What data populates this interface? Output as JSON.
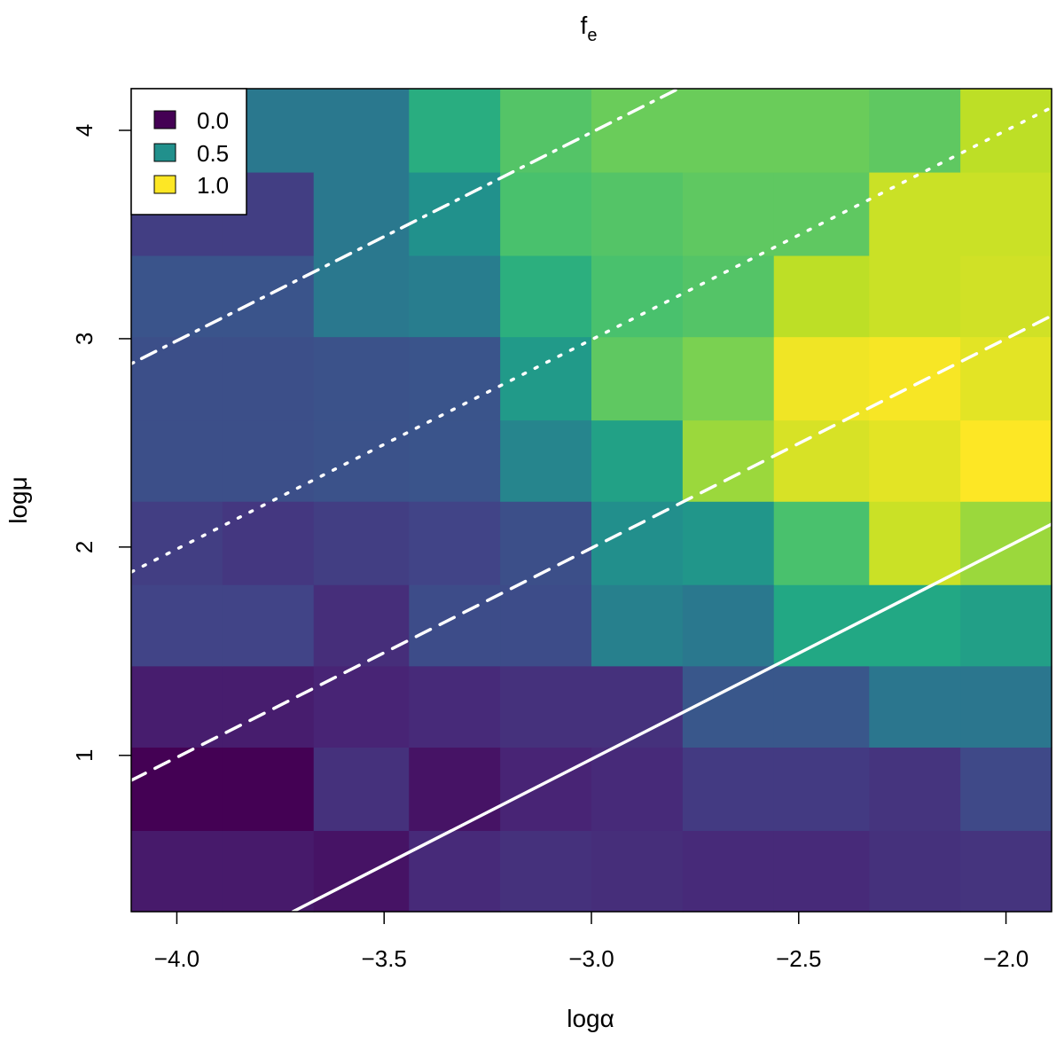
{
  "chart_data": {
    "type": "heatmap",
    "title": "f",
    "title_subscript": "e",
    "xlabel": "logα",
    "ylabel": "logμ",
    "xlim": [
      -4.11,
      -1.89
    ],
    "ylim": [
      0.25,
      4.2
    ],
    "x_ticks": [
      -4.0,
      -3.5,
      -3.0,
      -2.5,
      -2.0
    ],
    "x_tick_labels": [
      "−4.0",
      "−3.5",
      "−3.0",
      "−2.5",
      "−2.0"
    ],
    "y_ticks": [
      1,
      2,
      3,
      4
    ],
    "y_tick_labels": [
      "1",
      "2",
      "3",
      "4"
    ],
    "x_bins": [
      -4.11,
      -3.89,
      -3.67,
      -3.44,
      -3.22,
      -3.0,
      -2.78,
      -2.56,
      -2.33,
      -2.11,
      -1.89
    ],
    "y_bins": [
      0.25,
      0.64,
      1.04,
      1.43,
      1.82,
      2.22,
      2.61,
      3.01,
      3.4,
      3.8,
      4.2
    ],
    "z": [
      [
        0.07,
        0.07,
        0.05,
        0.12,
        0.14,
        0.13,
        0.12,
        0.12,
        0.14,
        0.15
      ],
      [
        0.0,
        0.0,
        0.14,
        0.05,
        0.1,
        0.12,
        0.17,
        0.17,
        0.15,
        0.22
      ],
      [
        0.08,
        0.08,
        0.1,
        0.12,
        0.14,
        0.14,
        0.27,
        0.27,
        0.39,
        0.39
      ],
      [
        0.2,
        0.2,
        0.13,
        0.23,
        0.23,
        0.43,
        0.4,
        0.6,
        0.6,
        0.56
      ],
      [
        0.18,
        0.16,
        0.18,
        0.2,
        0.24,
        0.49,
        0.52,
        0.71,
        0.92,
        0.85
      ],
      [
        0.24,
        0.24,
        0.25,
        0.26,
        0.45,
        0.57,
        0.85,
        0.94,
        0.96,
        1.0
      ],
      [
        0.24,
        0.24,
        0.25,
        0.26,
        0.54,
        0.75,
        0.8,
        0.98,
        0.99,
        0.96
      ],
      [
        0.26,
        0.26,
        0.4,
        0.42,
        0.63,
        0.71,
        0.73,
        0.9,
        0.92,
        0.93
      ],
      [
        0.18,
        0.18,
        0.4,
        0.5,
        0.71,
        0.73,
        0.75,
        0.75,
        0.92,
        0.92
      ],
      [
        0.4,
        0.4,
        0.4,
        0.62,
        0.73,
        0.77,
        0.77,
        0.77,
        0.75,
        0.9
      ]
    ],
    "zlim": [
      0,
      1
    ],
    "colormap": "viridis",
    "lines": [
      {
        "style": "solid",
        "x": [
          -3.72,
          -1.88
        ],
        "y": [
          0.25,
          2.12
        ]
      },
      {
        "style": "dashed",
        "x": [
          -4.11,
          -1.88
        ],
        "y": [
          0.88,
          3.12
        ]
      },
      {
        "style": "dotted",
        "x": [
          -4.11,
          -1.88
        ],
        "y": [
          1.88,
          4.12
        ]
      },
      {
        "style": "dashdot",
        "x": [
          -4.11,
          -2.79
        ],
        "y": [
          2.88,
          4.2
        ]
      }
    ],
    "line_color": "#ffffff",
    "legend": {
      "position": "top-left",
      "entries": [
        {
          "label": "0.0",
          "color": "#440154"
        },
        {
          "label": "0.5",
          "color": "#21908c"
        },
        {
          "label": "1.0",
          "color": "#fde725"
        }
      ]
    },
    "grid": false
  }
}
